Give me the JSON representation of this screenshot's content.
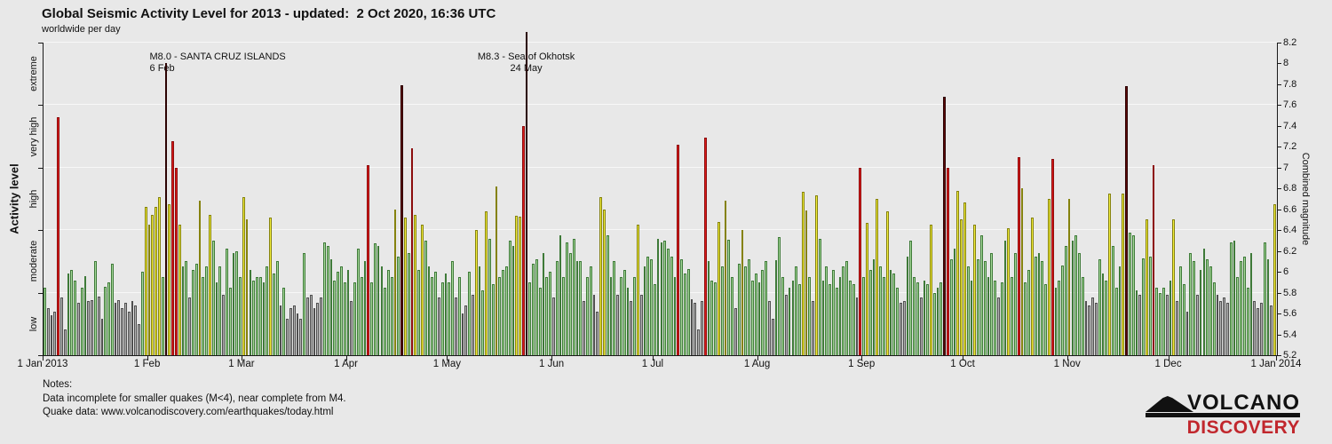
{
  "title": "Global Seismic Activity Level for 2013 - updated:  2 Oct 2020, 16:36 UTC",
  "subtitle": "worldwide per day",
  "notes": {
    "heading": "Notes:",
    "line1": "Data incomplete for smaller quakes (M<4), near complete from M4.",
    "line2": "Quake data: www.volcanodiscovery.com/earthquakes/today.html"
  },
  "logo": {
    "word_top": "VOLCANO",
    "word_bottom": "DISCOVERY",
    "accent_color": "#c1272d",
    "ink_color": "#111111"
  },
  "chart_data": {
    "type": "bar",
    "title": "Global Seismic Activity Level for 2013",
    "subtitle": "worldwide per day",
    "ylabel_left": "Activity level",
    "ylabel_right": "Combined magnitude",
    "y_range": [
      5.2,
      8.2
    ],
    "y_ticks": [
      5.2,
      5.4,
      5.6,
      5.8,
      6,
      6.2,
      6.4,
      6.6,
      6.8,
      7,
      7.2,
      7.4,
      7.6,
      7.8,
      8,
      8.2
    ],
    "grid_magnitudes": [
      5.8,
      6.4,
      7,
      7.6,
      8.2
    ],
    "zone_boundaries": [
      5.2,
      5.8,
      6.4,
      7,
      7.6,
      8.2
    ],
    "legend_position": "none",
    "x_ticks": [
      {
        "day": 0,
        "label": "1 Jan 2013"
      },
      {
        "day": 31,
        "label": "1 Feb"
      },
      {
        "day": 59,
        "label": "1 Mar"
      },
      {
        "day": 90,
        "label": "1 Apr"
      },
      {
        "day": 120,
        "label": "1 May"
      },
      {
        "day": 151,
        "label": "1 Jun"
      },
      {
        "day": 181,
        "label": "1 Jul"
      },
      {
        "day": 212,
        "label": "1 Aug"
      },
      {
        "day": 243,
        "label": "1 Sep"
      },
      {
        "day": 273,
        "label": "1 Oct"
      },
      {
        "day": 304,
        "label": "1 Nov"
      },
      {
        "day": 334,
        "label": "1 Dec"
      },
      {
        "day": 365,
        "label": "1 Jan 2014"
      }
    ],
    "activity_levels": [
      {
        "label": "low",
        "min": 5.2,
        "max": 5.8,
        "color": "#b5b5b5",
        "border": "#4f4f4f"
      },
      {
        "label": "moderate",
        "min": 5.8,
        "max": 6.4,
        "color": "#a6d89a",
        "border": "#3e7a38"
      },
      {
        "label": "high",
        "min": 6.4,
        "max": 7.0,
        "color": "#f2ee3c",
        "border": "#85820e"
      },
      {
        "label": "very high",
        "min": 7.0,
        "max": 7.6,
        "color": "#de1a1a",
        "border": "#8c0d0d"
      },
      {
        "label": "extreme",
        "min": 7.6,
        "max": 8.4,
        "color": "#5e0808",
        "border": "#2b0202"
      }
    ],
    "annotations": [
      {
        "line1": "M8.0 - SANTA CRUZ ISLANDS",
        "line2": "6 Feb",
        "day": 36,
        "align": "left"
      },
      {
        "line1": "M8.3 - Sea of Okhotsk",
        "line2": "24 May",
        "day": 143,
        "align": "center"
      }
    ],
    "values": [
      5.85,
      5.65,
      5.58,
      5.62,
      7.48,
      5.75,
      5.45,
      5.98,
      6.02,
      5.92,
      5.7,
      5.85,
      5.96,
      5.72,
      5.73,
      6.1,
      5.76,
      5.55,
      5.86,
      5.9,
      6.08,
      5.7,
      5.73,
      5.65,
      5.7,
      5.62,
      5.72,
      5.68,
      5.5,
      6.0,
      6.62,
      6.45,
      6.55,
      6.62,
      6.72,
      5.95,
      8.0,
      6.65,
      7.25,
      7.0,
      6.45,
      6.05,
      6.1,
      5.75,
      6.02,
      6.08,
      6.68,
      5.95,
      6.05,
      6.55,
      6.3,
      5.9,
      6.05,
      5.78,
      6.22,
      5.85,
      6.18,
      6.2,
      5.95,
      6.72,
      6.5,
      6.02,
      5.92,
      5.95,
      5.95,
      5.9,
      6.05,
      6.52,
      5.98,
      6.1,
      5.68,
      5.85,
      5.55,
      5.65,
      5.68,
      5.6,
      5.55,
      6.18,
      5.75,
      5.78,
      5.65,
      5.7,
      5.75,
      6.28,
      6.25,
      6.12,
      5.92,
      6.0,
      6.05,
      5.9,
      6.02,
      5.72,
      5.9,
      6.22,
      5.95,
      6.1,
      7.02,
      5.9,
      6.27,
      6.25,
      6.05,
      5.85,
      6.02,
      5.95,
      6.6,
      6.15,
      7.79,
      6.52,
      6.18,
      7.19,
      6.55,
      6.02,
      6.45,
      6.3,
      6.05,
      5.95,
      6.0,
      5.75,
      5.9,
      5.98,
      5.9,
      6.1,
      5.75,
      5.95,
      5.6,
      5.68,
      6.0,
      5.78,
      6.4,
      6.05,
      5.82,
      6.58,
      6.32,
      5.88,
      6.82,
      5.95,
      6.02,
      6.05,
      6.3,
      6.25,
      6.54,
      6.53,
      7.4,
      8.3,
      5.9,
      6.08,
      6.12,
      5.85,
      6.18,
      5.95,
      6.0,
      5.75,
      6.1,
      6.35,
      5.95,
      6.28,
      6.18,
      6.32,
      6.1,
      6.1,
      5.72,
      5.95,
      6.05,
      5.78,
      5.62,
      6.72,
      6.6,
      6.35,
      5.95,
      6.1,
      5.78,
      5.95,
      6.02,
      5.85,
      5.72,
      5.95,
      6.45,
      5.78,
      6.05,
      6.15,
      6.12,
      5.88,
      6.32,
      6.28,
      6.3,
      6.22,
      6.15,
      5.95,
      7.22,
      6.12,
      5.98,
      6.03,
      5.74,
      5.7,
      5.45,
      5.72,
      7.29,
      6.1,
      5.92,
      5.9,
      6.48,
      6.05,
      6.68,
      6.31,
      5.95,
      5.65,
      6.08,
      6.4,
      6.05,
      6.12,
      5.92,
      5.98,
      5.9,
      6.02,
      6.1,
      5.72,
      5.55,
      6.11,
      6.33,
      5.95,
      5.78,
      5.85,
      5.92,
      6.05,
      5.88,
      6.77,
      6.59,
      5.95,
      5.72,
      6.73,
      6.32,
      5.92,
      6.05,
      5.88,
      6.02,
      5.85,
      5.95,
      6.05,
      6.1,
      5.92,
      5.88,
      5.75,
      7.0,
      5.95,
      6.47,
      6.02,
      6.12,
      6.7,
      6.05,
      5.95,
      6.58,
      6.02,
      5.98,
      5.85,
      5.7,
      5.72,
      6.15,
      6.3,
      5.95,
      5.9,
      5.75,
      5.92,
      5.88,
      6.45,
      5.8,
      5.85,
      5.9,
      7.68,
      7.0,
      6.12,
      6.22,
      6.78,
      6.5,
      6.67,
      6.05,
      5.92,
      6.45,
      6.12,
      6.35,
      6.1,
      5.95,
      6.18,
      5.92,
      5.75,
      5.9,
      6.3,
      6.42,
      5.95,
      6.18,
      7.1,
      6.8,
      5.9,
      6.02,
      6.52,
      6.15,
      6.18,
      6.1,
      5.88,
      6.7,
      7.08,
      5.85,
      5.92,
      6.06,
      6.25,
      6.7,
      6.3,
      6.35,
      6.18,
      5.95,
      5.72,
      5.68,
      5.75,
      5.7,
      6.12,
      5.98,
      5.92,
      6.75,
      6.25,
      5.85,
      6.05,
      6.75,
      7.78,
      6.38,
      6.35,
      5.82,
      5.78,
      6.13,
      6.5,
      6.15,
      7.02,
      5.85,
      5.8,
      5.85,
      5.78,
      5.92,
      6.5,
      5.72,
      6.05,
      5.88,
      5.62,
      6.18,
      6.1,
      5.78,
      6.02,
      6.22,
      6.12,
      6.05,
      5.9,
      5.78,
      5.72,
      5.75,
      5.7,
      6.28,
      6.3,
      5.95,
      6.1,
      6.15,
      5.85,
      6.18,
      5.72,
      5.65,
      5.7,
      6.28,
      6.12,
      5.68,
      6.65
    ]
  }
}
